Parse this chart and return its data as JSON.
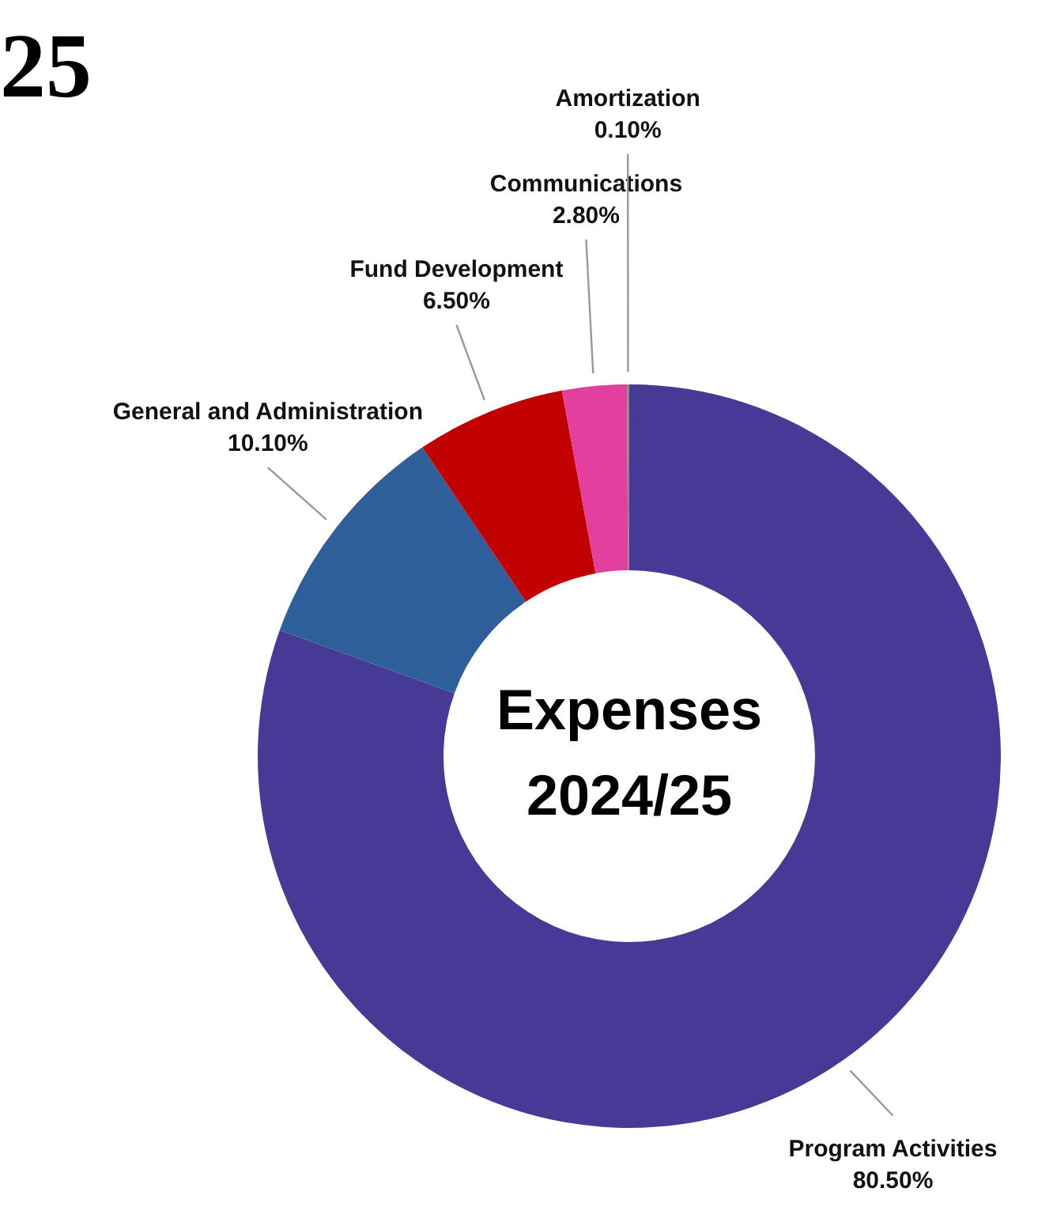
{
  "chart_data": {
    "type": "donut",
    "title": "Expenses 2024/25",
    "categories": [
      "Program Activities",
      "General and Administration",
      "Fund Development",
      "Communications",
      "Amortization"
    ],
    "values": [
      80.5,
      10.1,
      6.5,
      2.8,
      0.1
    ],
    "colors": [
      "#473a97",
      "#2f5f9a",
      "#c30000",
      "#e23f9f",
      "#8a8a8a"
    ],
    "value_labels": [
      "80.50%",
      "10.10%",
      "6.50%",
      "2.80%",
      "0.10%"
    ],
    "legend": false,
    "annotations": [
      "25"
    ]
  }
}
